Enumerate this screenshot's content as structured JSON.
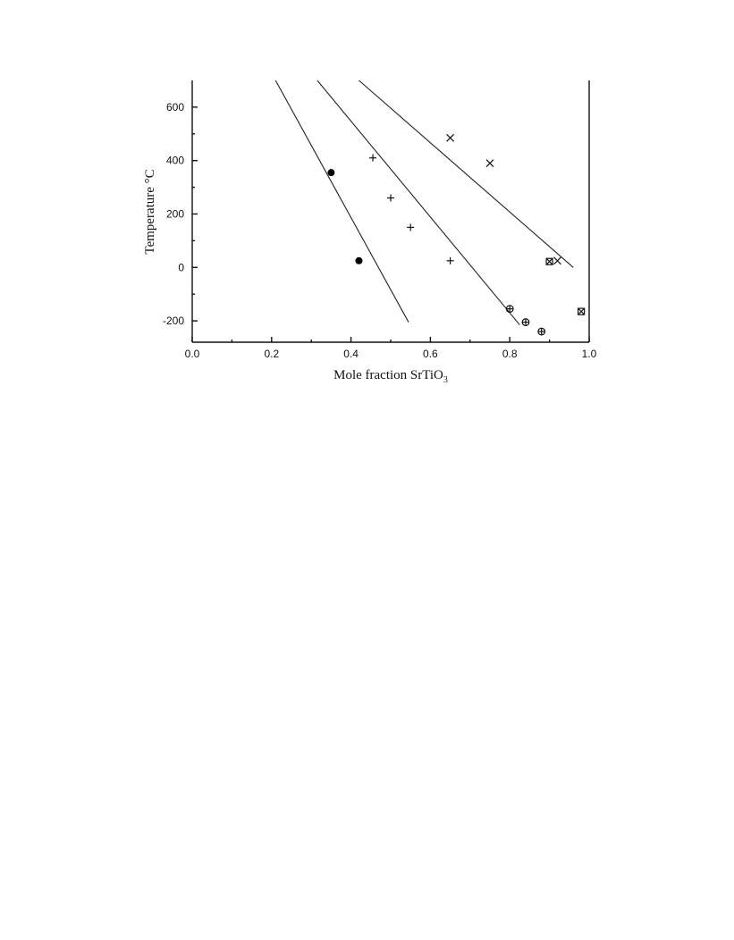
{
  "chart_data": {
    "type": "scatter",
    "xlabel": "Mole fraction SrTiO",
    "xlabel_subscript": "3",
    "ylabel": "Temperature °C",
    "xlim": [
      0.0,
      1.0
    ],
    "ylim": [
      -280,
      700
    ],
    "x_ticks": [
      "0.0",
      "0.2",
      "0.4",
      "0.6",
      "0.8",
      "1.0"
    ],
    "y_ticks": [
      "-200",
      "0",
      "200",
      "400",
      "600"
    ],
    "x_tick_values": [
      0.0,
      0.2,
      0.4,
      0.6,
      0.8,
      1.0
    ],
    "y_tick_values": [
      -200,
      0,
      200,
      400,
      600
    ],
    "grid": false,
    "legend": "none",
    "series": [
      {
        "marker": "filled-circle",
        "points": [
          [
            0.35,
            355
          ],
          [
            0.42,
            25
          ]
        ]
      },
      {
        "marker": "plus",
        "points": [
          [
            0.455,
            410
          ],
          [
            0.5,
            260
          ],
          [
            0.55,
            150
          ],
          [
            0.65,
            25
          ]
        ]
      },
      {
        "marker": "x",
        "points": [
          [
            0.65,
            485
          ],
          [
            0.75,
            390
          ],
          [
            0.92,
            25
          ]
        ]
      },
      {
        "marker": "circle-plus",
        "points": [
          [
            0.8,
            -155
          ],
          [
            0.84,
            -205
          ],
          [
            0.88,
            -240
          ]
        ]
      },
      {
        "marker": "boxed-x",
        "points": [
          [
            0.9,
            22
          ],
          [
            0.98,
            -165
          ]
        ]
      }
    ],
    "lines": [
      {
        "points": [
          [
            0.21,
            700
          ],
          [
            0.545,
            -205
          ]
        ]
      },
      {
        "points": [
          [
            0.315,
            700
          ],
          [
            0.825,
            -215
          ]
        ]
      },
      {
        "points": [
          [
            0.42,
            700
          ],
          [
            0.96,
            0
          ]
        ]
      }
    ]
  }
}
